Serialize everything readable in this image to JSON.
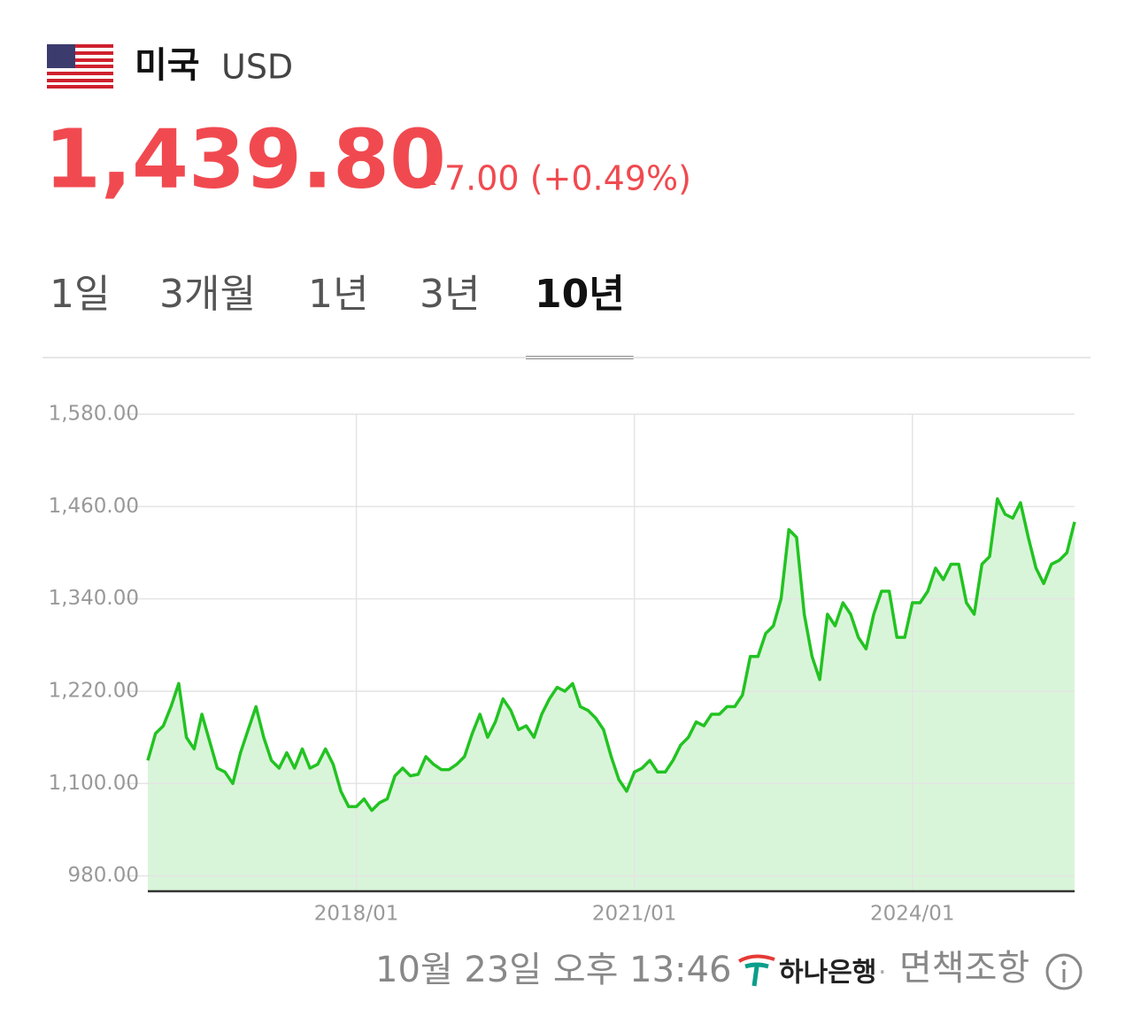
{
  "header": {
    "country": "미국",
    "currency": "USD",
    "price": "1,439.80",
    "change": "7.00 (+0.49%)"
  },
  "tabs": {
    "items": [
      "1일",
      "3개월",
      "1년",
      "3년",
      "10년"
    ],
    "selected": 4
  },
  "chart_data": {
    "type": "line",
    "x": [
      "2015/10",
      "2015/11",
      "2015/12",
      "2016/01",
      "2016/02",
      "2016/03",
      "2016/04",
      "2016/05",
      "2016/06",
      "2016/07",
      "2016/08",
      "2016/09",
      "2016/10",
      "2016/11",
      "2016/12",
      "2017/01",
      "2017/02",
      "2017/03",
      "2017/04",
      "2017/05",
      "2017/06",
      "2017/07",
      "2017/08",
      "2017/09",
      "2017/10",
      "2017/11",
      "2017/12",
      "2018/01",
      "2018/02",
      "2018/03",
      "2018/04",
      "2018/05",
      "2018/06",
      "2018/07",
      "2018/08",
      "2018/09",
      "2018/10",
      "2018/11",
      "2018/12",
      "2019/01",
      "2019/02",
      "2019/03",
      "2019/04",
      "2019/05",
      "2019/06",
      "2019/07",
      "2019/08",
      "2019/09",
      "2019/10",
      "2019/11",
      "2019/12",
      "2020/01",
      "2020/02",
      "2020/03",
      "2020/04",
      "2020/05",
      "2020/06",
      "2020/07",
      "2020/08",
      "2020/09",
      "2020/10",
      "2020/11",
      "2020/12",
      "2021/01",
      "2021/02",
      "2021/03",
      "2021/04",
      "2021/05",
      "2021/06",
      "2021/07",
      "2021/08",
      "2021/09",
      "2021/10",
      "2021/11",
      "2021/12",
      "2022/01",
      "2022/02",
      "2022/03",
      "2022/04",
      "2022/05",
      "2022/06",
      "2022/07",
      "2022/08",
      "2022/09",
      "2022/10",
      "2022/11",
      "2022/12",
      "2023/01",
      "2023/02",
      "2023/03",
      "2023/04",
      "2023/05",
      "2023/06",
      "2023/07",
      "2023/08",
      "2023/09",
      "2023/10",
      "2023/11",
      "2023/12",
      "2024/01",
      "2024/02",
      "2024/03",
      "2024/04",
      "2024/05",
      "2024/06",
      "2024/07",
      "2024/08",
      "2024/09",
      "2024/10",
      "2024/11",
      "2024/12",
      "2025/01",
      "2025/02",
      "2025/03",
      "2025/04",
      "2025/05",
      "2025/06",
      "2025/07",
      "2025/08",
      "2025/09",
      "2025/10"
    ],
    "series": [
      {
        "color": "#22c322",
        "fill": "#d9f5d9",
        "values": [
          1130,
          1165,
          1175,
          1200,
          1230,
          1160,
          1145,
          1190,
          1155,
          1120,
          1115,
          1100,
          1140,
          1170,
          1200,
          1160,
          1130,
          1120,
          1140,
          1120,
          1145,
          1120,
          1125,
          1145,
          1125,
          1090,
          1070,
          1070,
          1080,
          1065,
          1075,
          1080,
          1110,
          1120,
          1110,
          1112,
          1135,
          1125,
          1118,
          1118,
          1125,
          1135,
          1165,
          1190,
          1160,
          1180,
          1210,
          1195,
          1170,
          1175,
          1160,
          1190,
          1210,
          1225,
          1220,
          1230,
          1200,
          1195,
          1185,
          1170,
          1135,
          1105,
          1090,
          1115,
          1120,
          1130,
          1115,
          1115,
          1130,
          1150,
          1160,
          1180,
          1175,
          1190,
          1190,
          1200,
          1200,
          1215,
          1265,
          1265,
          1295,
          1305,
          1340,
          1430,
          1420,
          1320,
          1265,
          1235,
          1320,
          1305,
          1335,
          1320,
          1290,
          1275,
          1320,
          1350,
          1350,
          1290,
          1290,
          1335,
          1335,
          1350,
          1380,
          1365,
          1385,
          1385,
          1335,
          1320,
          1385,
          1395,
          1470,
          1450,
          1445,
          1465,
          1420,
          1380,
          1360,
          1385,
          1390,
          1400,
          1440
        ]
      }
    ],
    "xlim": [
      "2015/10",
      "2025/10"
    ],
    "xticks": [
      "2018/01",
      "2021/01",
      "2024/01"
    ],
    "ylim": [
      960,
      1580
    ],
    "yticks": [
      {
        "value": 980,
        "label": "980.00"
      },
      {
        "value": 1100,
        "label": "1,100.00"
      },
      {
        "value": 1220,
        "label": "1,220.00"
      },
      {
        "value": 1340,
        "label": "1,340.00"
      },
      {
        "value": 1460,
        "label": "1,460.00"
      },
      {
        "value": 1580,
        "label": "1,580.00"
      }
    ],
    "grid": true
  },
  "footer": {
    "timestamp": "10월 23일 오후 13:46",
    "bank": "하나은행",
    "separator": "·",
    "disclaimer": "면책조항"
  }
}
